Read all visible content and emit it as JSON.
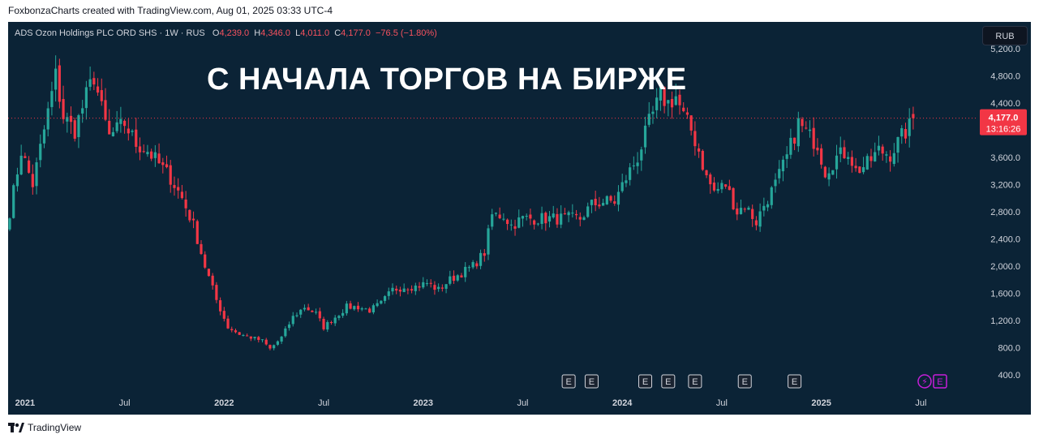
{
  "caption": "FoxbonzaCharts created with TradingView.com, Aug 01, 2025 03:33 UTC-4",
  "footer_brand": "TradingView",
  "headline": "С НАЧАЛА ТОРГОВ НА БИРЖЕ",
  "currency_button": "RUB",
  "legend": {
    "symbol": "ADS Ozon Holdings PLC ORD SHS · 1W · RUS",
    "o_label": "O",
    "o_value": "4,239.0",
    "h_label": "H",
    "h_value": "4,346.0",
    "l_label": "L",
    "l_value": "4,011.0",
    "c_label": "C",
    "c_value": "4,177.0",
    "change": "−76.5 (−1.80%)"
  },
  "price_tag": {
    "price": "4,177.0",
    "countdown": "13:16:26"
  },
  "colors": {
    "up": "#26a69a",
    "down": "#f23645",
    "background": "#0b2336",
    "tag": "#f23645",
    "event_purple": "#c71ed9"
  },
  "chart_data": {
    "type": "candlestick",
    "ylim": [
      400,
      5200
    ],
    "y_ticks": [
      "400.0",
      "800.0",
      "1,200.0",
      "1,600.0",
      "2,000.0",
      "2,400.0",
      "2,800.0",
      "3,200.0",
      "3,600.0",
      "4,000.0",
      "4,400.0",
      "4,800.0",
      "5,200.0"
    ],
    "y_tick_values": [
      400,
      800,
      1200,
      1600,
      2000,
      2400,
      2800,
      3200,
      3600,
      4000,
      4400,
      4800,
      5200
    ],
    "x_ticks": [
      "2021",
      "Jul",
      "2022",
      "Jul",
      "2023",
      "Jul",
      "2024",
      "Jul",
      "2025",
      "Jul"
    ],
    "x_tick_bold": [
      true,
      false,
      true,
      false,
      true,
      false,
      true,
      false,
      true,
      false
    ],
    "x_tick_weeks": [
      4,
      30,
      56,
      82,
      108,
      134,
      160,
      186,
      212,
      238
    ],
    "last_price": 4177,
    "events": [
      {
        "week": 146,
        "label": "E"
      },
      {
        "week": 152,
        "label": "E"
      },
      {
        "week": 166,
        "label": "E"
      },
      {
        "week": 172,
        "label": "E"
      },
      {
        "week": 179,
        "label": "E"
      },
      {
        "week": 192,
        "label": "E"
      },
      {
        "week": 205,
        "label": "E"
      },
      {
        "week": 243,
        "label": "E",
        "special": true
      }
    ],
    "anchors": [
      [
        0,
        2800
      ],
      [
        3,
        3700
      ],
      [
        6,
        3200
      ],
      [
        9,
        4000
      ],
      [
        12,
        4800
      ],
      [
        14,
        4200
      ],
      [
        17,
        4000
      ],
      [
        20,
        4500
      ],
      [
        22,
        4800
      ],
      [
        24,
        4300
      ],
      [
        26,
        3900
      ],
      [
        28,
        4000
      ],
      [
        30,
        4100
      ],
      [
        33,
        3800
      ],
      [
        36,
        3700
      ],
      [
        39,
        3500
      ],
      [
        42,
        3300
      ],
      [
        45,
        3000
      ],
      [
        48,
        2600
      ],
      [
        51,
        2000
      ],
      [
        54,
        1500
      ],
      [
        57,
        1100
      ],
      [
        60,
        1000
      ],
      [
        63,
        950
      ],
      [
        66,
        900
      ],
      [
        68,
        780
      ],
      [
        71,
        950
      ],
      [
        74,
        1250
      ],
      [
        77,
        1400
      ],
      [
        80,
        1300
      ],
      [
        82,
        1100
      ],
      [
        85,
        1250
      ],
      [
        88,
        1400
      ],
      [
        91,
        1400
      ],
      [
        94,
        1350
      ],
      [
        97,
        1450
      ],
      [
        100,
        1650
      ],
      [
        103,
        1700
      ],
      [
        106,
        1700
      ],
      [
        109,
        1750
      ],
      [
        112,
        1650
      ],
      [
        115,
        1800
      ],
      [
        118,
        1900
      ],
      [
        121,
        2000
      ],
      [
        124,
        2200
      ],
      [
        126,
        2750
      ],
      [
        129,
        2750
      ],
      [
        131,
        2600
      ],
      [
        134,
        2700
      ],
      [
        137,
        2700
      ],
      [
        140,
        2700
      ],
      [
        143,
        2700
      ],
      [
        146,
        2700
      ],
      [
        149,
        2700
      ],
      [
        152,
        2900
      ],
      [
        155,
        2950
      ],
      [
        158,
        2950
      ],
      [
        161,
        3300
      ],
      [
        164,
        3600
      ],
      [
        167,
        4100
      ],
      [
        170,
        4500
      ],
      [
        172,
        4400
      ],
      [
        174,
        4500
      ],
      [
        176,
        4200
      ],
      [
        178,
        4000
      ],
      [
        180,
        3700
      ],
      [
        182,
        3300
      ],
      [
        184,
        3100
      ],
      [
        187,
        3200
      ],
      [
        190,
        2800
      ],
      [
        192,
        2900
      ],
      [
        195,
        2650
      ],
      [
        197,
        2900
      ],
      [
        200,
        3200
      ],
      [
        203,
        3600
      ],
      [
        206,
        4100
      ],
      [
        209,
        3900
      ],
      [
        211,
        3800
      ],
      [
        213,
        3400
      ],
      [
        216,
        3600
      ],
      [
        219,
        3700
      ],
      [
        221,
        3400
      ],
      [
        224,
        3500
      ],
      [
        227,
        3700
      ],
      [
        230,
        3650
      ],
      [
        233,
        3900
      ],
      [
        235,
        4050
      ],
      [
        236,
        4177
      ]
    ]
  }
}
